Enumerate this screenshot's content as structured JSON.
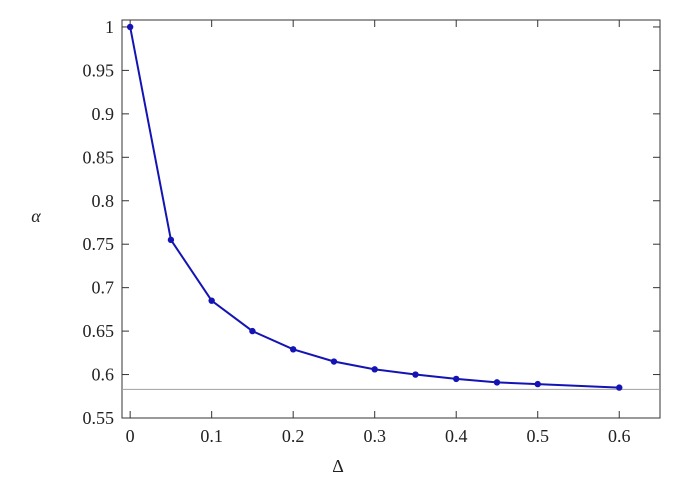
{
  "chart_data": {
    "type": "line",
    "x_label": "Δ",
    "y_label": "α",
    "x": [
      0,
      0.05,
      0.1,
      0.15,
      0.2,
      0.25,
      0.3,
      0.35,
      0.4,
      0.45,
      0.5,
      0.6
    ],
    "values": [
      1,
      0.755,
      0.685,
      0.65,
      0.629,
      0.615,
      0.606,
      0.6,
      0.595,
      0.591,
      0.589,
      0.585
    ],
    "color": "#1414b4",
    "reference_line": 0.583,
    "reference_color": "#a0a0a0",
    "xlim": [
      -0.01,
      0.65
    ],
    "ylim": [
      0.55,
      1.008
    ],
    "xticks": [
      0,
      0.1,
      0.2,
      0.3,
      0.4,
      0.5,
      0.6
    ],
    "yticks": [
      0.55,
      0.6,
      0.65,
      0.7,
      0.75,
      0.8,
      0.85,
      0.9,
      0.95,
      1
    ]
  }
}
